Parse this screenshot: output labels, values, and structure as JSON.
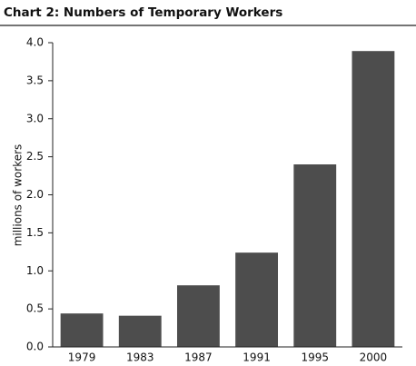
{
  "chart_data": {
    "type": "bar",
    "title": "Chart 2: Numbers of Temporary Workers",
    "y_label": "millions of workers",
    "categories": [
      "1979",
      "1983",
      "1987",
      "1991",
      "1995",
      "2000"
    ],
    "values": [
      0.44,
      0.41,
      0.81,
      1.24,
      2.4,
      3.89
    ],
    "color": "#4d4d4d",
    "ylim": [
      0,
      4
    ],
    "yticks": [
      {
        "value": 0,
        "label": "0.0"
      },
      0.5,
      {
        "value": 1,
        "label": "1.0"
      },
      1.5,
      {
        "value": 2,
        "label": "2.0"
      },
      2.5,
      {
        "value": 3,
        "label": "3.0"
      },
      3.5,
      {
        "value": 4,
        "label": "4.0"
      }
    ],
    "grid": false
  }
}
